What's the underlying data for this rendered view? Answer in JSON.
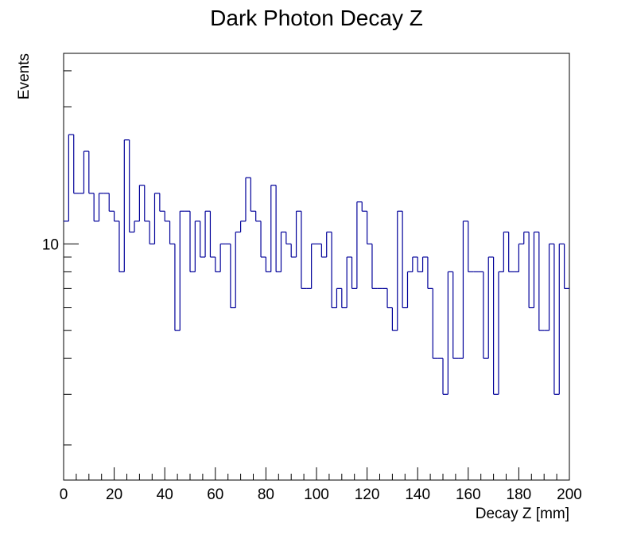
{
  "chart_data": {
    "type": "histogram",
    "title": "Dark Photon Decay Z",
    "x_label": "Decay Z [mm]",
    "y_label": "Events",
    "bins": [
      0,
      2,
      4,
      6,
      8,
      10,
      12,
      14,
      16,
      18,
      20,
      22,
      24,
      26,
      28,
      30,
      32,
      34,
      36,
      38,
      40,
      42,
      44,
      46,
      48,
      50,
      52,
      54,
      56,
      58,
      60,
      62,
      64,
      66,
      68,
      70,
      72,
      74,
      76,
      78,
      80,
      82,
      84,
      86,
      88,
      90,
      92,
      94,
      96,
      98,
      100,
      102,
      104,
      106,
      108,
      110,
      112,
      114,
      116,
      118,
      120,
      122,
      124,
      126,
      128,
      130,
      132,
      134,
      136,
      138,
      140,
      142,
      144,
      146,
      148,
      150,
      152,
      154,
      156,
      158,
      160,
      162,
      164,
      166,
      168,
      170,
      172,
      174,
      176,
      178,
      180,
      182,
      184,
      186,
      188,
      190,
      192,
      194,
      196,
      198,
      200
    ],
    "values": [
      12,
      24,
      15,
      15,
      21,
      15,
      12,
      15,
      15,
      13,
      12,
      8,
      23,
      11,
      12,
      16,
      12,
      10,
      15,
      13,
      12,
      10,
      5,
      13,
      13,
      8,
      12,
      9,
      13,
      9,
      8,
      10,
      10,
      6,
      11,
      12,
      17,
      13,
      12,
      9,
      8,
      16,
      8,
      11,
      10,
      9,
      13,
      7,
      7,
      10,
      10,
      9,
      11,
      6,
      7,
      6,
      9,
      7,
      14,
      13,
      10,
      7,
      7,
      7,
      6,
      5,
      13,
      6,
      8,
      9,
      8,
      9,
      7,
      4,
      4,
      3,
      8,
      4,
      4,
      12,
      8,
      8,
      8,
      4,
      9,
      3,
      8,
      11,
      8,
      8,
      10,
      11,
      6,
      11,
      5,
      5,
      10,
      3,
      10,
      7
    ],
    "color": "#000099",
    "xlim": [
      0,
      200
    ],
    "xticks": [
      0,
      20,
      40,
      60,
      80,
      100,
      120,
      140,
      160,
      180,
      200
    ],
    "xminorticks": [
      5,
      10,
      15,
      25,
      30,
      35,
      45,
      50,
      55,
      65,
      70,
      75,
      85,
      90,
      95,
      105,
      110,
      115,
      125,
      130,
      135,
      145,
      150,
      155,
      165,
      170,
      175,
      185,
      190,
      195
    ],
    "ylim": [
      1.51,
      46
    ],
    "log_y": true,
    "yticks": [
      10
    ],
    "yminorticks": [
      2,
      3,
      4,
      5,
      6,
      7,
      8,
      9,
      30,
      40
    ]
  }
}
